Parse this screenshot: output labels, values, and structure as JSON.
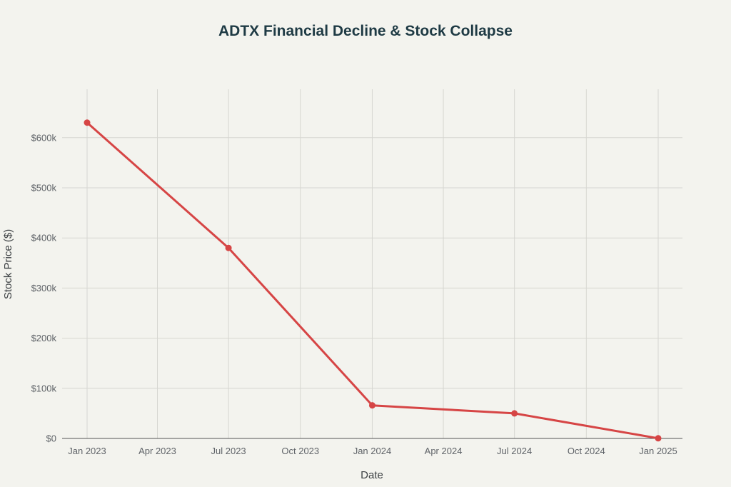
{
  "chart_data": {
    "type": "line",
    "title": "ADTX Financial Decline & Stock Collapse",
    "xlabel": "Date",
    "ylabel": "Stock Price ($)",
    "x_ticks": [
      {
        "date": "2023-01-01",
        "label": "Jan 2023"
      },
      {
        "date": "2023-04-01",
        "label": "Apr 2023"
      },
      {
        "date": "2023-07-01",
        "label": "Jul 2023"
      },
      {
        "date": "2023-10-01",
        "label": "Oct 2023"
      },
      {
        "date": "2024-01-01",
        "label": "Jan 2024"
      },
      {
        "date": "2024-04-01",
        "label": "Apr 2024"
      },
      {
        "date": "2024-07-01",
        "label": "Jul 2024"
      },
      {
        "date": "2024-10-01",
        "label": "Oct 2024"
      },
      {
        "date": "2025-01-01",
        "label": "Jan 2025"
      }
    ],
    "y_ticks": [
      {
        "value": 0,
        "label": "$0"
      },
      {
        "value": 100000,
        "label": "$100k"
      },
      {
        "value": 200000,
        "label": "$200k"
      },
      {
        "value": 300000,
        "label": "$300k"
      },
      {
        "value": 400000,
        "label": "$400k"
      },
      {
        "value": 500000,
        "label": "$500k"
      },
      {
        "value": 600000,
        "label": "$600k"
      }
    ],
    "xlim": [
      "2023-01-01",
      "2025-01-01"
    ],
    "ylim": [
      0,
      700000
    ],
    "grid": true,
    "series": [
      {
        "color": "#d64545",
        "points": [
          {
            "x": "2023-01-01",
            "y": 630000
          },
          {
            "x": "2023-07-01",
            "y": 380000
          },
          {
            "x": "2024-01-01",
            "y": 66000
          },
          {
            "x": "2024-07-01",
            "y": 50000
          },
          {
            "x": "2025-01-01",
            "y": 300
          }
        ]
      }
    ]
  }
}
